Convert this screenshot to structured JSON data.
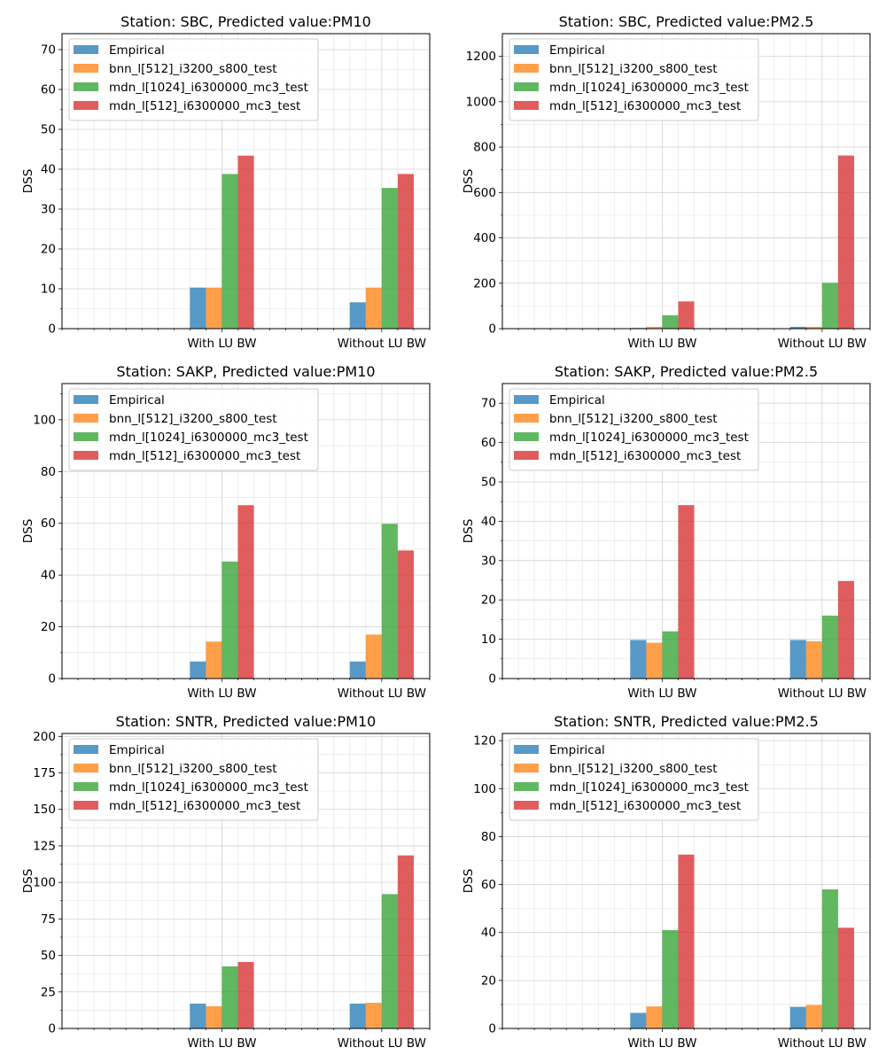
{
  "legend_labels": [
    "Empirical",
    "bnn_l[512]_i3200_s800_test",
    "mdn_l[1024]_i6300000_mc3_test",
    "mdn_l[512]_i6300000_mc3_test"
  ],
  "colors": [
    "#1f77b4",
    "#ff7f0e",
    "#2ca02c",
    "#d62728"
  ],
  "chart_data": [
    {
      "type": "bar",
      "title": "Station: SBC, Predicted value:PM10",
      "ylabel": "DSS",
      "categories": [
        "With LU BW",
        "Without LU BW"
      ],
      "ylim": [
        0,
        74
      ],
      "yticks": [
        0,
        10,
        20,
        30,
        40,
        50,
        60,
        70
      ],
      "legend": "top-left",
      "grid": true,
      "series": [
        {
          "name": "Empirical",
          "values": [
            10.3,
            6.6
          ]
        },
        {
          "name": "bnn_l[512]_i3200_s800_test",
          "values": [
            10.3,
            10.3
          ]
        },
        {
          "name": "mdn_l[1024]_i6300000_mc3_test",
          "values": [
            38.8,
            35.3
          ]
        },
        {
          "name": "mdn_l[512]_i6300000_mc3_test",
          "values": [
            43.4,
            38.8
          ]
        }
      ]
    },
    {
      "type": "bar",
      "title": "Station: SBC, Predicted value:PM2.5",
      "ylabel": "DSS",
      "categories": [
        "With LU BW",
        "Without LU BW"
      ],
      "ylim": [
        0,
        1300
      ],
      "yticks": [
        0,
        200,
        400,
        600,
        800,
        1000,
        1200
      ],
      "legend": "top-left",
      "grid": true,
      "series": [
        {
          "name": "Empirical",
          "values": [
            3,
            8
          ]
        },
        {
          "name": "bnn_l[512]_i3200_s800_test",
          "values": [
            8,
            8
          ]
        },
        {
          "name": "mdn_l[1024]_i6300000_mc3_test",
          "values": [
            59,
            202
          ]
        },
        {
          "name": "mdn_l[512]_i6300000_mc3_test",
          "values": [
            120,
            763
          ]
        }
      ]
    },
    {
      "type": "bar",
      "title": "Station: SAKP, Predicted value:PM10",
      "ylabel": "DSS",
      "categories": [
        "With LU BW",
        "Without LU BW"
      ],
      "ylim": [
        0,
        114
      ],
      "yticks": [
        0,
        20,
        40,
        60,
        80,
        100
      ],
      "legend": "top-left",
      "grid": true,
      "series": [
        {
          "name": "Empirical",
          "values": [
            6.6,
            6.6
          ]
        },
        {
          "name": "bnn_l[512]_i3200_s800_test",
          "values": [
            14.3,
            17.0
          ]
        },
        {
          "name": "mdn_l[1024]_i6300000_mc3_test",
          "values": [
            45.2,
            59.8
          ]
        },
        {
          "name": "mdn_l[512]_i6300000_mc3_test",
          "values": [
            67.0,
            49.5
          ]
        }
      ]
    },
    {
      "type": "bar",
      "title": "Station: SAKP, Predicted value:PM2.5",
      "ylabel": "DSS",
      "categories": [
        "With LU BW",
        "Without LU BW"
      ],
      "ylim": [
        0,
        75
      ],
      "yticks": [
        0,
        10,
        20,
        30,
        40,
        50,
        60,
        70
      ],
      "legend": "top-left",
      "grid": true,
      "series": [
        {
          "name": "Empirical",
          "values": [
            9.8,
            9.8
          ]
        },
        {
          "name": "bnn_l[512]_i3200_s800_test",
          "values": [
            9.1,
            9.5
          ]
        },
        {
          "name": "mdn_l[1024]_i6300000_mc3_test",
          "values": [
            12.0,
            16.0
          ]
        },
        {
          "name": "mdn_l[512]_i6300000_mc3_test",
          "values": [
            44.1,
            24.8
          ]
        }
      ]
    },
    {
      "type": "bar",
      "title": "Station: SNTR, Predicted value:PM10",
      "ylabel": "DSS",
      "categories": [
        "With LU BW",
        "Without LU BW"
      ],
      "ylim": [
        0,
        202
      ],
      "yticks": [
        0,
        25,
        50,
        75,
        100,
        125,
        150,
        175,
        200
      ],
      "legend": "top-left",
      "grid": true,
      "series": [
        {
          "name": "Empirical",
          "values": [
            17.0,
            17.0
          ]
        },
        {
          "name": "bnn_l[512]_i3200_s800_test",
          "values": [
            15.2,
            17.6
          ]
        },
        {
          "name": "mdn_l[1024]_i6300000_mc3_test",
          "values": [
            42.5,
            92.0
          ]
        },
        {
          "name": "mdn_l[512]_i6300000_mc3_test",
          "values": [
            45.5,
            118.5
          ]
        }
      ]
    },
    {
      "type": "bar",
      "title": "Station: SNTR, Predicted value:PM2.5",
      "ylabel": "DSS",
      "categories": [
        "With LU BW",
        "Without LU BW"
      ],
      "ylim": [
        0,
        123
      ],
      "yticks": [
        0,
        20,
        40,
        60,
        80,
        100,
        120
      ],
      "legend": "top-left",
      "grid": true,
      "series": [
        {
          "name": "Empirical",
          "values": [
            6.5,
            9.0
          ]
        },
        {
          "name": "bnn_l[512]_i3200_s800_test",
          "values": [
            9.2,
            9.8
          ]
        },
        {
          "name": "mdn_l[1024]_i6300000_mc3_test",
          "values": [
            41.0,
            58.0
          ]
        },
        {
          "name": "mdn_l[512]_i6300000_mc3_test",
          "values": [
            72.5,
            42.0
          ]
        }
      ]
    }
  ]
}
